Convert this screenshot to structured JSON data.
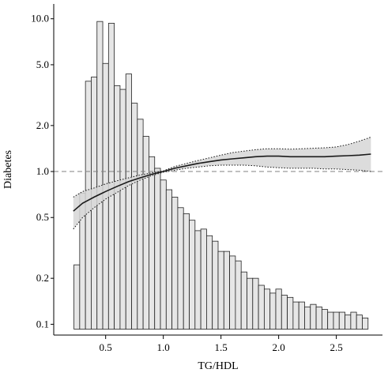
{
  "chart_data": {
    "type": "bar",
    "title": "",
    "xlabel": "TG/HDL",
    "ylabel": "Diabetes",
    "xlim": [
      0.05,
      2.9
    ],
    "ylim": [
      0.085,
      12.5
    ],
    "y_scale": "log",
    "x_ticks": [
      "0.5",
      "1.0",
      "1.5",
      "2.0",
      "2.5"
    ],
    "x_tick_values": [
      0.5,
      1.0,
      1.5,
      2.0,
      2.5
    ],
    "y_ticks": [
      "10.0",
      "5.0",
      "2.0",
      "1.0",
      "0.5",
      "0.2",
      "0.1"
    ],
    "y_tick_values": [
      10,
      5,
      2,
      1,
      0.5,
      0.2,
      0.1
    ],
    "reference_line": 1.0,
    "grid": false,
    "colors": {
      "bar_fill": "#e6e6e6",
      "bar_stroke": "#222222",
      "curve": "#1a1a1a",
      "band": "#d6d6d6",
      "reference": "#808080"
    },
    "histogram": {
      "bin_start": 0.225,
      "bin_width": 0.05,
      "counts": [
        0.245,
        0.72,
        3.9,
        4.15,
        9.6,
        5.1,
        9.35,
        3.65,
        3.45,
        4.35,
        2.8,
        2.2,
        1.7,
        1.25,
        1.05,
        0.88,
        0.76,
        0.68,
        0.58,
        0.53,
        0.48,
        0.41,
        0.42,
        0.38,
        0.35,
        0.3,
        0.3,
        0.28,
        0.26,
        0.22,
        0.2,
        0.2,
        0.18,
        0.17,
        0.16,
        0.17,
        0.155,
        0.15,
        0.14,
        0.14,
        0.13,
        0.135,
        0.13,
        0.125,
        0.12,
        0.12,
        0.12,
        0.115,
        0.12,
        0.115,
        0.11
      ]
    },
    "series": [
      {
        "type": "line",
        "x": [
          0.22,
          0.3,
          0.4,
          0.5,
          0.6,
          0.7,
          0.8,
          0.9,
          1.0,
          1.1,
          1.2,
          1.3,
          1.4,
          1.5,
          1.6,
          1.7,
          1.8,
          1.9,
          2.0,
          2.1,
          2.2,
          2.3,
          2.4,
          2.5,
          2.6,
          2.7,
          2.8
        ],
        "y": [
          0.55,
          0.62,
          0.68,
          0.74,
          0.8,
          0.86,
          0.91,
          0.96,
          1.0,
          1.05,
          1.09,
          1.13,
          1.16,
          1.19,
          1.21,
          1.23,
          1.25,
          1.26,
          1.26,
          1.25,
          1.25,
          1.25,
          1.25,
          1.26,
          1.27,
          1.28,
          1.3
        ],
        "lower": [
          0.42,
          0.5,
          0.58,
          0.66,
          0.73,
          0.81,
          0.88,
          0.94,
          0.99,
          1.02,
          1.05,
          1.07,
          1.09,
          1.1,
          1.1,
          1.1,
          1.09,
          1.07,
          1.06,
          1.05,
          1.05,
          1.05,
          1.04,
          1.04,
          1.03,
          1.02,
          1.0
        ],
        "upper": [
          0.68,
          0.74,
          0.78,
          0.83,
          0.87,
          0.91,
          0.95,
          0.98,
          1.01,
          1.08,
          1.13,
          1.18,
          1.23,
          1.28,
          1.33,
          1.36,
          1.39,
          1.41,
          1.41,
          1.4,
          1.41,
          1.42,
          1.43,
          1.45,
          1.5,
          1.58,
          1.68
        ]
      }
    ]
  }
}
